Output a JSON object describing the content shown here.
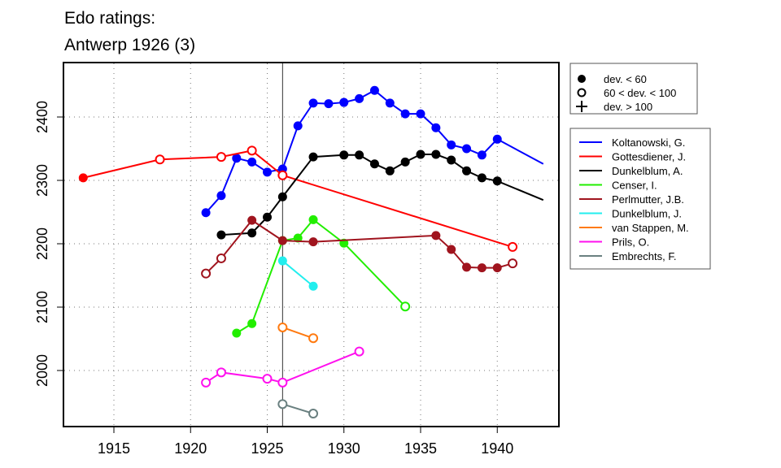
{
  "chart_data": {
    "type": "line",
    "title": [
      "Edo ratings:",
      "Antwerp 1926 (3)"
    ],
    "xlabel": "",
    "ylabel": "",
    "xlim": [
      1911.7,
      1944.2
    ],
    "ylim": [
      1912,
      2486
    ],
    "x_ticks": [
      1915,
      1920,
      1925,
      1930,
      1935,
      1940
    ],
    "y_ticks": [
      2000,
      2100,
      2200,
      2300,
      2400
    ],
    "grid": true,
    "marker_line_year": 1926,
    "marker_legend": [
      {
        "symbol": "filled",
        "label": "dev. < 60"
      },
      {
        "symbol": "open",
        "label": "60 < dev. < 100"
      },
      {
        "symbol": "plus",
        "label": "dev. > 100"
      }
    ],
    "series": [
      {
        "name": "Koltanowski, G.",
        "color": "#0000ff",
        "end": [
          1943,
          2326
        ],
        "points": [
          [
            1921,
            2249,
            "f"
          ],
          [
            1922,
            2276,
            "f"
          ],
          [
            1923,
            2335,
            "f"
          ],
          [
            1924,
            2329,
            "f"
          ],
          [
            1925,
            2313,
            "f"
          ],
          [
            1926,
            2318,
            "f"
          ],
          [
            1927,
            2386,
            "f"
          ],
          [
            1928,
            2422,
            "f"
          ],
          [
            1929,
            2421,
            "f"
          ],
          [
            1930,
            2423,
            "f"
          ],
          [
            1931,
            2429,
            "f"
          ],
          [
            1932,
            2442,
            "f"
          ],
          [
            1933,
            2422,
            "f"
          ],
          [
            1934,
            2405,
            "f"
          ],
          [
            1935,
            2405,
            "f"
          ],
          [
            1936,
            2383,
            "f"
          ],
          [
            1937,
            2356,
            "f"
          ],
          [
            1938,
            2350,
            "f"
          ],
          [
            1939,
            2340,
            "f"
          ],
          [
            1940,
            2365,
            "f"
          ]
        ]
      },
      {
        "name": "Gottesdiener, J.",
        "color": "#ff0000",
        "points": [
          [
            1913,
            2304,
            "f"
          ],
          [
            1918,
            2333,
            "o"
          ],
          [
            1922,
            2337,
            "o"
          ],
          [
            1924,
            2347,
            "o"
          ],
          [
            1926,
            2308,
            "o"
          ],
          [
            1941,
            2195,
            "o"
          ]
        ]
      },
      {
        "name": "Dunkelblum, A.",
        "color": "#000000",
        "end": [
          1943,
          2269
        ],
        "points": [
          [
            1922,
            2214,
            "f"
          ],
          [
            1924,
            2217,
            "f"
          ],
          [
            1925,
            2242,
            "f"
          ],
          [
            1926,
            2274,
            "f"
          ],
          [
            1928,
            2337,
            "f"
          ],
          [
            1930,
            2340,
            "f"
          ],
          [
            1931,
            2340,
            "f"
          ],
          [
            1932,
            2326,
            "f"
          ],
          [
            1933,
            2315,
            "f"
          ],
          [
            1934,
            2329,
            "f"
          ],
          [
            1935,
            2341,
            "f"
          ],
          [
            1936,
            2341,
            "f"
          ],
          [
            1937,
            2332,
            "f"
          ],
          [
            1938,
            2315,
            "f"
          ],
          [
            1939,
            2304,
            "f"
          ],
          [
            1940,
            2299,
            "f"
          ]
        ]
      },
      {
        "name": "Censer, I.",
        "color": "#22ee00",
        "points": [
          [
            1923,
            2059,
            "f"
          ],
          [
            1924,
            2074,
            "f"
          ],
          [
            1926,
            2205,
            "f"
          ],
          [
            1927,
            2209,
            "f"
          ],
          [
            1928,
            2238,
            "f"
          ],
          [
            1930,
            2201,
            "f"
          ],
          [
            1934,
            2101,
            "o"
          ]
        ]
      },
      {
        "name": "Perlmutter, J.B.",
        "color": "#a0141e",
        "points": [
          [
            1921,
            2153,
            "o"
          ],
          [
            1922,
            2177,
            "o"
          ],
          [
            1924,
            2237,
            "f"
          ],
          [
            1926,
            2205,
            "f"
          ],
          [
            1928,
            2203,
            "f"
          ],
          [
            1936,
            2213,
            "f"
          ],
          [
            1937,
            2191,
            "f"
          ],
          [
            1938,
            2163,
            "f"
          ],
          [
            1939,
            2162,
            "f"
          ],
          [
            1940,
            2162,
            "f"
          ],
          [
            1941,
            2169,
            "o"
          ]
        ]
      },
      {
        "name": "Dunkelblum, J.",
        "color": "#22eeee",
        "points": [
          [
            1926,
            2173,
            "f"
          ],
          [
            1928,
            2133,
            "f"
          ]
        ]
      },
      {
        "name": "van Stappen, M.",
        "color": "#ff7a10",
        "points": [
          [
            1926,
            2068,
            "o"
          ],
          [
            1928,
            2051,
            "o"
          ]
        ]
      },
      {
        "name": "Prils, O.",
        "color": "#ff10ee",
        "points": [
          [
            1921,
            1981,
            "o"
          ],
          [
            1922,
            1997,
            "o"
          ],
          [
            1925,
            1987,
            "o"
          ],
          [
            1926,
            1981,
            "o"
          ],
          [
            1931,
            2030,
            "o"
          ]
        ]
      },
      {
        "name": "Embrechts, F.",
        "color": "#6a8080",
        "points": [
          [
            1926,
            1947,
            "o"
          ],
          [
            1928,
            1932,
            "o"
          ]
        ]
      }
    ]
  }
}
